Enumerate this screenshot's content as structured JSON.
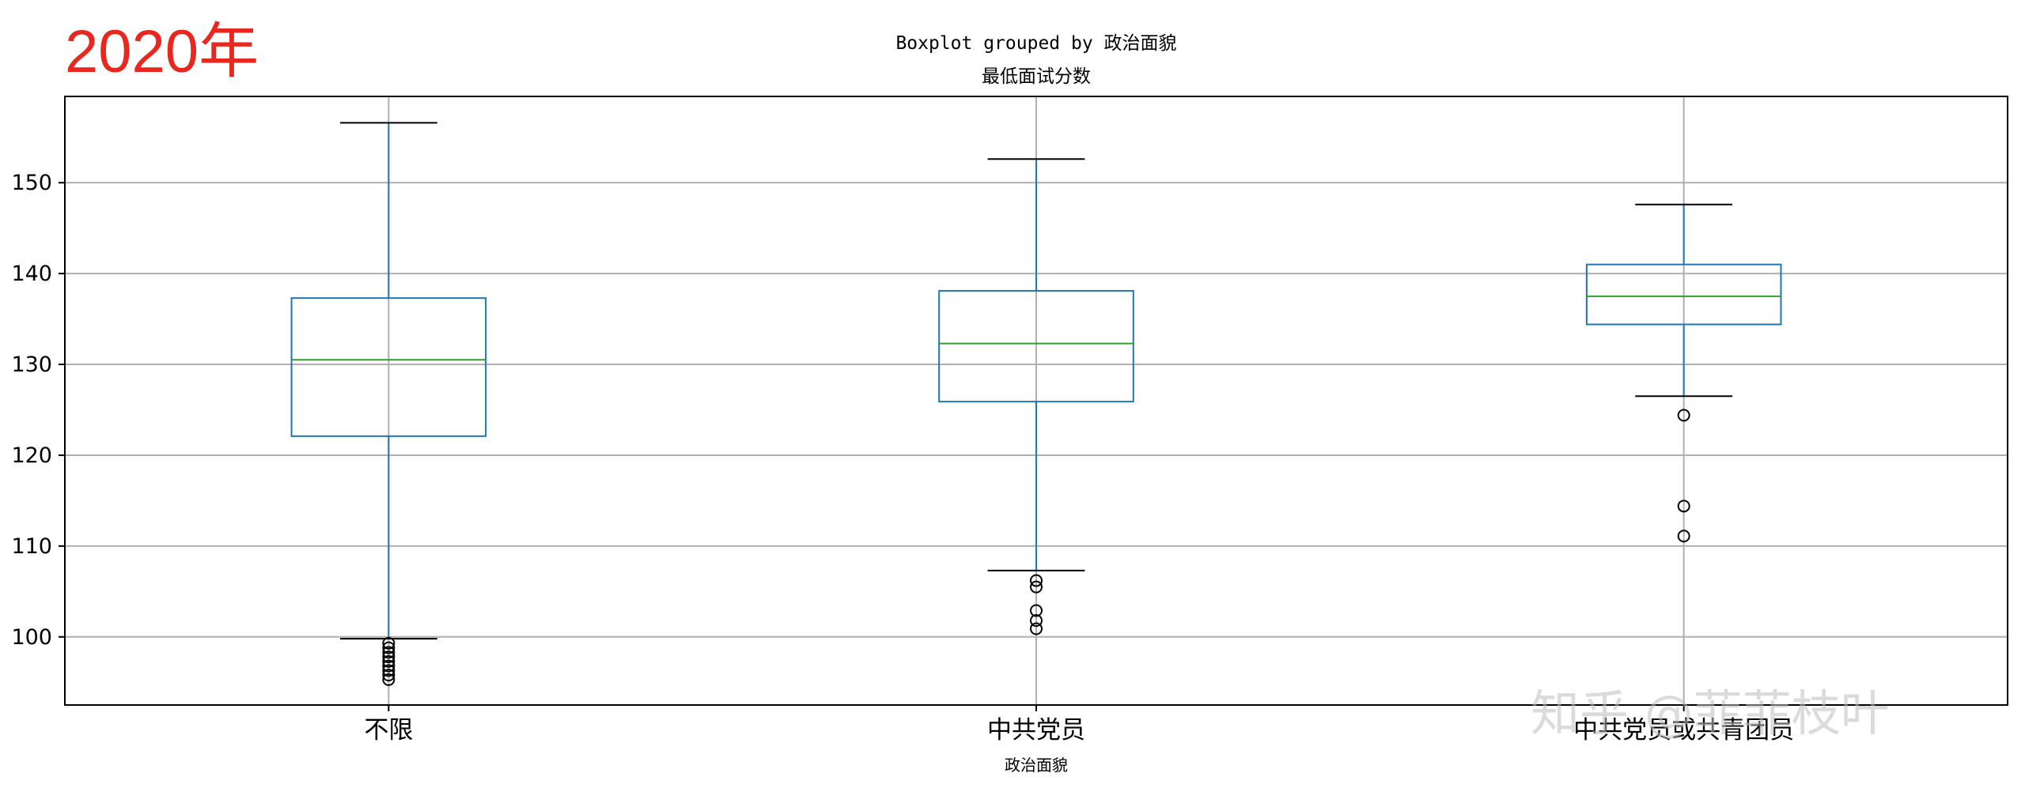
{
  "year_label": "2020年",
  "watermark": "知乎 @菲菲枝叶",
  "chart_data": {
    "type": "boxplot",
    "title": "Boxplot grouped by 政治面貌",
    "subtitle": "最低面试分数",
    "xlabel": "政治面貌",
    "ylabel": "",
    "ylim": [
      92.5,
      159.5
    ],
    "yticks": [
      100,
      110,
      120,
      130,
      140,
      150
    ],
    "grid": true,
    "categories": [
      "不限",
      "中共党员",
      "中共党员或共青团员"
    ],
    "boxes": [
      {
        "category": "不限",
        "whisker_low": 99.8,
        "q1": 122.1,
        "median": 130.5,
        "q3": 137.3,
        "whisker_high": 156.6,
        "outliers": [
          99.3,
          98.8,
          98.3,
          97.8,
          97.3,
          96.8,
          96.3,
          95.8,
          95.3
        ]
      },
      {
        "category": "中共党员",
        "whisker_low": 107.3,
        "q1": 125.9,
        "median": 132.3,
        "q3": 138.1,
        "whisker_high": 152.6,
        "outliers": [
          106.2,
          105.5,
          102.9,
          101.8,
          100.9
        ]
      },
      {
        "category": "中共党员或共青团员",
        "whisker_low": 126.5,
        "q1": 134.4,
        "median": 137.5,
        "q3": 141.0,
        "whisker_high": 147.6,
        "outliers": [
          124.4,
          114.4,
          111.1
        ]
      }
    ],
    "colors": {
      "box": "#1f77b4",
      "median": "#2ca02c",
      "outlier": "#000000",
      "grid": "#b0b0b0",
      "year_label": "#e8281e"
    }
  }
}
